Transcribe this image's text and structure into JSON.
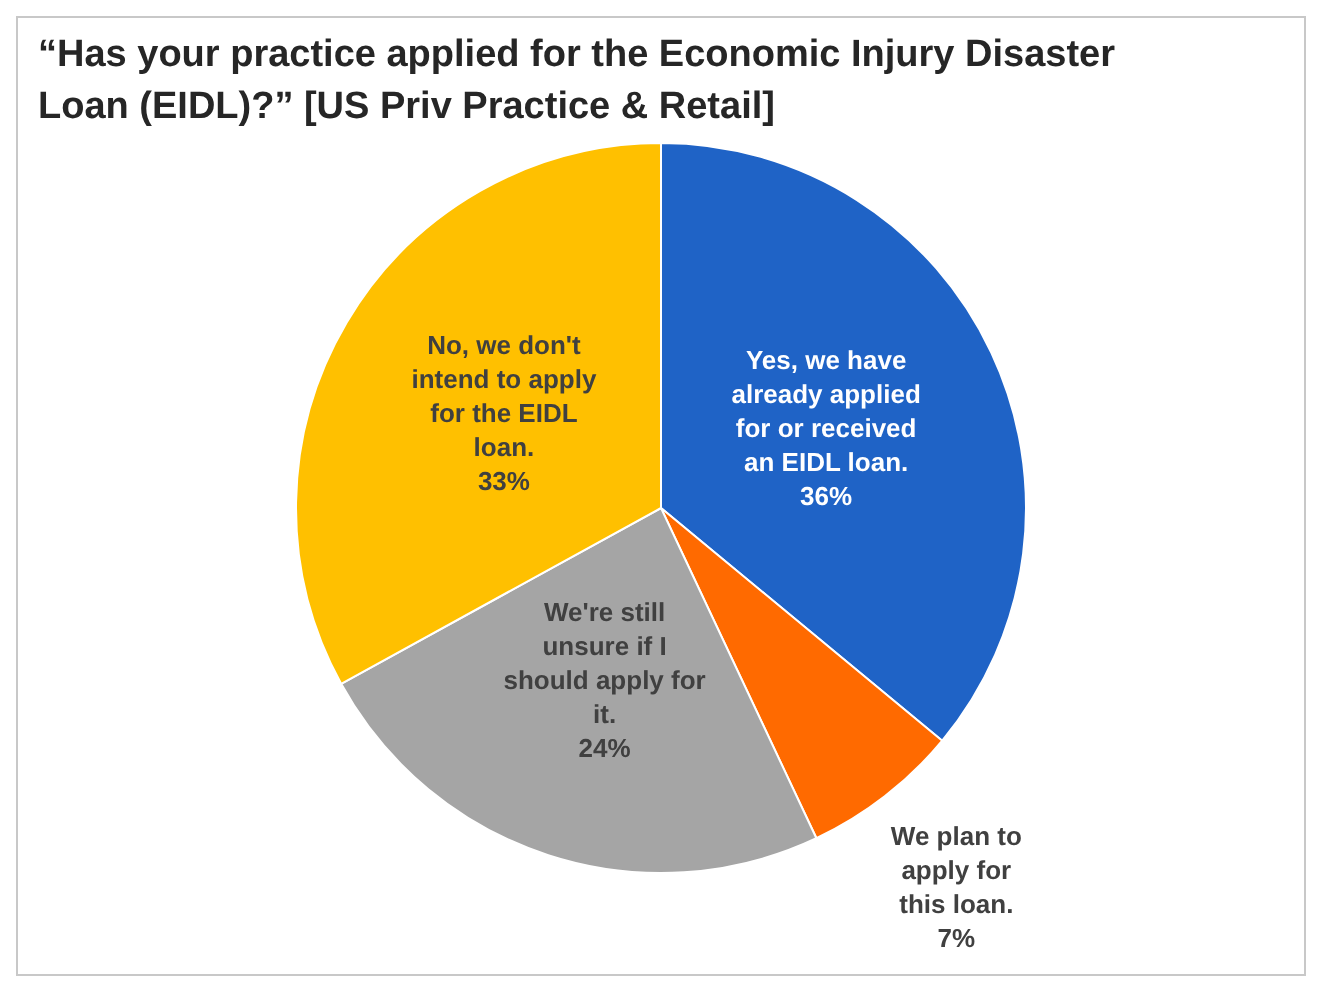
{
  "chart_data": {
    "type": "pie",
    "title": "“Has your practice applied for the Economic Injury Disaster Loan (EIDL)?” [US Priv Practice & Retail]",
    "categories": [
      "Yes, we have already applied for or received an EIDL loan.",
      "We plan to apply for this loan.",
      "We're still unsure if I should apply for it.",
      "No, we don't intend to apply for the EIDL loan."
    ],
    "values": [
      36,
      7,
      24,
      33
    ],
    "colors": [
      "#1f63c6",
      "#ff6a00",
      "#a5a5a5",
      "#ffc000"
    ],
    "value_labels": [
      "36%",
      "7%",
      "24%",
      "33%"
    ],
    "legend": false
  }
}
